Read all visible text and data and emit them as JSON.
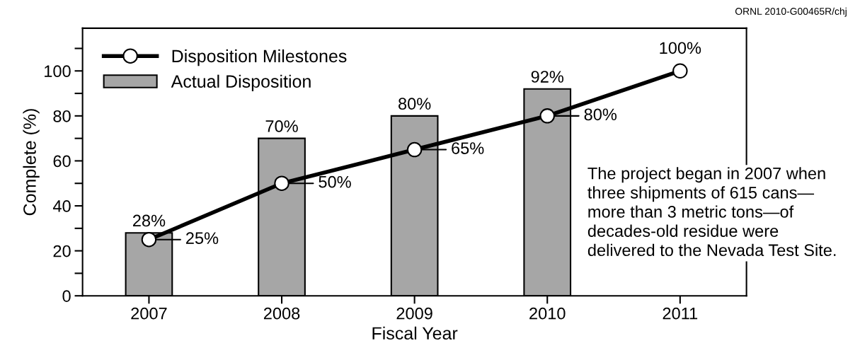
{
  "chart_data": {
    "type": "bar",
    "xlabel": "Fiscal Year",
    "ylabel": "Complete (%)",
    "categories": [
      "2007",
      "2008",
      "2009",
      "2010",
      "2011"
    ],
    "series": [
      {
        "name": "Actual Disposition",
        "color": "#a6a6a6",
        "values": [
          28,
          70,
          80,
          92,
          null
        ],
        "value_labels": [
          "28%",
          "70%",
          "80%",
          "92%",
          null
        ]
      },
      {
        "name": "Disposition Milestones",
        "type": "line",
        "color": "#000000",
        "marker": "circle",
        "values": [
          25,
          50,
          65,
          80,
          100
        ],
        "value_labels": [
          "25%",
          "50%",
          "65%",
          "80%",
          "100%"
        ]
      }
    ],
    "ylim": [
      0,
      119
    ],
    "yticks": [
      0,
      {
        "value": 10,
        "label": null
      },
      20,
      {
        "value": 30,
        "label": null
      },
      40,
      {
        "value": 50,
        "label": null
      },
      60,
      {
        "value": 70,
        "label": null
      },
      80,
      {
        "value": 90,
        "label": null
      },
      100,
      {
        "value": 110,
        "label": null
      }
    ],
    "legend": "top left",
    "grid": false,
    "annotations": [
      "ORNL 2010-G00465R/chj",
      "The project began in 2007 when\nthree shipments of 615 cans—\nmore than 3 metric tons—of\ndecades-old residue were\ndelivered to the Nevada Test Site."
    ]
  }
}
